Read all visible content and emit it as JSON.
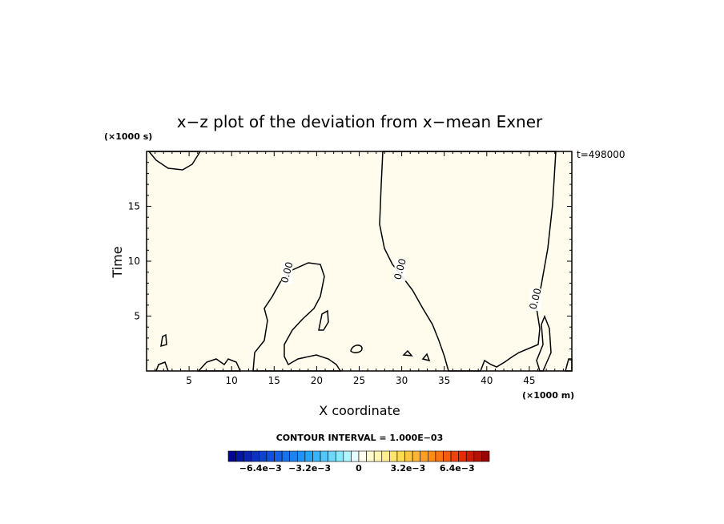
{
  "chart_data": {
    "type": "contour",
    "title": "x−z plot of the deviation from x−mean Exner",
    "xlabel": "X coordinate",
    "ylabel": "Time",
    "x_unit": "(×1000 m)",
    "y_unit": "(×1000 s)",
    "time_label": "t=498000",
    "xlim": [
      0,
      50
    ],
    "ylim": [
      0,
      20
    ],
    "xticks": [
      5,
      10,
      15,
      20,
      25,
      30,
      35,
      40,
      45
    ],
    "yticks": [
      5,
      10,
      15
    ],
    "contour_interval_text": "CONTOUR INTERVAL = 1.000E−03",
    "contour_labels": [
      {
        "text": "0.00",
        "x": 16.5,
        "y": 8.9
      },
      {
        "text": "0.00",
        "x": 29.8,
        "y": 9.2
      },
      {
        "text": "0.00",
        "x": 45.7,
        "y": 6.5
      }
    ],
    "colorbar": {
      "range": [
        -0.0085,
        0.0085
      ],
      "n_bins": 34,
      "tick_labels": [
        "−6.4e−3",
        "−3.2e−3",
        "0",
        "3.2e−3",
        "6.4e−3"
      ],
      "tick_values": [
        -0.0064,
        -0.0032,
        0,
        0.0032,
        0.0064
      ]
    },
    "fill_colors": {
      "positive": "#fffcee",
      "negative": "#e9ffff"
    }
  }
}
